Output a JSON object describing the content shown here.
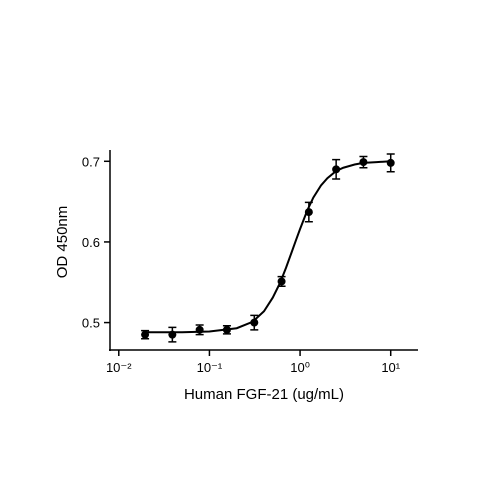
{
  "chart_data": {
    "type": "scatter",
    "x_label": "Human FGF-21 (ug/mL)",
    "y_label": "OD 450nm",
    "xscale": "log",
    "xlim": [
      0.008,
      20
    ],
    "ylim": [
      0.466,
      0.714
    ],
    "xticks": [
      {
        "value": 0.01,
        "label": "10⁻²"
      },
      {
        "value": 0.1,
        "label": "10⁻¹"
      },
      {
        "value": 1,
        "label": "10⁰"
      },
      {
        "value": 10,
        "label": "10¹"
      }
    ],
    "yticks": [
      0.5,
      0.6,
      0.7
    ],
    "series": [
      {
        "type": "scatter",
        "color": "#000000",
        "x": [
          0.0195,
          0.039,
          0.078,
          0.156,
          0.3125,
          0.625,
          1.25,
          2.5,
          5,
          10
        ],
        "values": [
          0.485,
          0.485,
          0.491,
          0.491,
          0.5,
          0.551,
          0.637,
          0.69,
          0.699,
          0.698
        ],
        "errors": [
          0.005,
          0.009,
          0.006,
          0.005,
          0.009,
          0.006,
          0.012,
          0.012,
          0.007,
          0.011
        ]
      },
      {
        "type": "line",
        "color": "#000000",
        "x": [
          0.0195,
          0.05,
          0.1,
          0.2,
          0.3,
          0.4,
          0.5,
          0.6,
          0.7,
          0.8,
          0.9,
          1.0,
          1.2,
          1.4,
          1.7,
          2,
          2.5,
          3,
          4,
          5,
          7,
          10
        ],
        "values": [
          0.488,
          0.488,
          0.489,
          0.493,
          0.501,
          0.514,
          0.531,
          0.549,
          0.568,
          0.586,
          0.602,
          0.616,
          0.639,
          0.655,
          0.67,
          0.679,
          0.688,
          0.692,
          0.696,
          0.698,
          0.699,
          0.7
        ]
      }
    ]
  }
}
